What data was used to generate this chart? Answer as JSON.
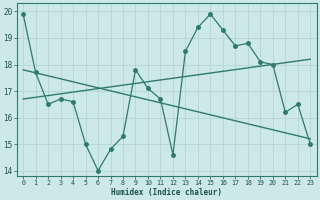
{
  "xlabel": "Humidex (Indice chaleur)",
  "bg_color": "#cce8e8",
  "grid_color": "#b8d8d8",
  "line_color": "#2e7b6e",
  "ylim": [
    13.8,
    20.3
  ],
  "xlim": [
    -0.5,
    23.5
  ],
  "yticks": [
    14,
    15,
    16,
    17,
    18,
    19,
    20
  ],
  "xticks": [
    0,
    1,
    2,
    3,
    4,
    5,
    6,
    7,
    8,
    9,
    10,
    11,
    12,
    13,
    14,
    15,
    16,
    17,
    18,
    19,
    20,
    21,
    22,
    23
  ],
  "series1_x": [
    0,
    1,
    2,
    3,
    4,
    5,
    6,
    7,
    8,
    9,
    10,
    11,
    12,
    13,
    14,
    15,
    16,
    17,
    18,
    19,
    20,
    21,
    22,
    23
  ],
  "series1_y": [
    19.9,
    17.7,
    16.5,
    16.7,
    16.6,
    15.0,
    14.0,
    14.8,
    15.3,
    17.8,
    17.1,
    16.7,
    14.6,
    18.5,
    19.4,
    19.9,
    19.3,
    18.7,
    18.8,
    18.1,
    18.0,
    16.2,
    16.5,
    15.0
  ],
  "series2_x": [
    0,
    23
  ],
  "series2_y": [
    17.8,
    15.2
  ],
  "series3_x": [
    0,
    23
  ],
  "series3_y": [
    16.7,
    18.2
  ]
}
